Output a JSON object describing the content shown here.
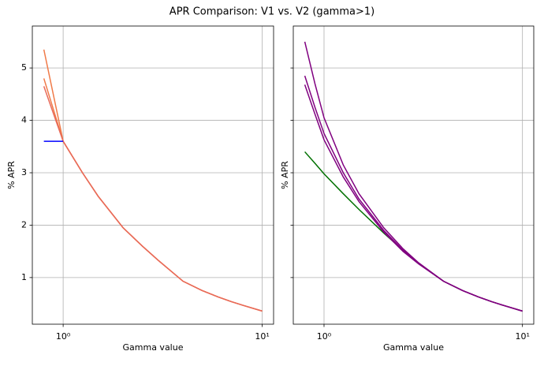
{
  "title": "APR Comparison: V1 vs. V2 (gamma>1)",
  "chart_data": [
    {
      "type": "line",
      "xlabel": "Gamma value",
      "ylabel": "% APR",
      "log_x": true,
      "grid": true,
      "xlim": [
        0.7,
        11.4
      ],
      "ylim": [
        0.11,
        5.8
      ],
      "xticks": [
        {
          "value": 1,
          "label": "10⁰"
        },
        {
          "value": 10,
          "label": "10¹"
        }
      ],
      "yticks": [
        1,
        2,
        3,
        4,
        5
      ],
      "ytick_labels": true,
      "x": [
        0.8,
        1,
        1.25,
        1.5,
        2,
        2.5,
        3,
        4,
        5,
        6,
        7,
        8,
        10
      ],
      "series": [
        {
          "color": "#f07a48",
          "values": [
            5.35,
            3.6,
            3.0,
            2.55,
            1.95,
            1.6,
            1.33,
            0.93,
            0.75,
            0.63,
            0.54,
            0.47,
            0.36
          ]
        },
        {
          "color": "#f07a48",
          "values": [
            4.8,
            3.6,
            3.0,
            2.55,
            1.95,
            1.6,
            1.33,
            0.93,
            0.75,
            0.63,
            0.54,
            0.47,
            0.36
          ]
        },
        {
          "color": "#e86a5a",
          "values": [
            4.65,
            3.6,
            3.0,
            2.55,
            1.95,
            1.6,
            1.33,
            0.93,
            0.75,
            0.63,
            0.54,
            0.47,
            0.36
          ]
        },
        {
          "color": "#0000ff",
          "values": [
            3.6,
            3.6,
            null,
            null,
            null,
            null,
            null,
            null,
            null,
            null,
            null,
            null,
            null
          ]
        }
      ]
    },
    {
      "type": "line",
      "xlabel": "Gamma value",
      "ylabel": "% APR",
      "log_x": true,
      "grid": true,
      "xlim": [
        0.7,
        11.4
      ],
      "ylim": [
        0.11,
        5.8
      ],
      "xticks": [
        {
          "value": 1,
          "label": "10⁰"
        },
        {
          "value": 10,
          "label": "10¹"
        }
      ],
      "yticks": [
        1,
        2,
        3,
        4,
        5
      ],
      "ytick_labels": false,
      "x": [
        0.8,
        0.9,
        1,
        1.25,
        1.5,
        2,
        2.5,
        3,
        4,
        5,
        6,
        7,
        8,
        10
      ],
      "series": [
        {
          "color": "#007000",
          "values": [
            3.4,
            3.18,
            2.98,
            2.6,
            2.3,
            1.85,
            1.52,
            1.27,
            0.93,
            0.75,
            0.63,
            0.54,
            0.47,
            0.36
          ]
        },
        {
          "color": "#800080",
          "values": [
            5.5,
            4.7,
            4.05,
            3.15,
            2.6,
            1.95,
            1.55,
            1.28,
            0.93,
            0.75,
            0.63,
            0.54,
            0.47,
            0.36
          ]
        },
        {
          "color": "#800080",
          "values": [
            4.85,
            4.25,
            3.75,
            3.0,
            2.5,
            1.9,
            1.52,
            1.27,
            0.93,
            0.75,
            0.63,
            0.54,
            0.47,
            0.36
          ]
        },
        {
          "color": "#800080",
          "values": [
            4.68,
            4.12,
            3.63,
            2.92,
            2.45,
            1.87,
            1.5,
            1.26,
            0.93,
            0.75,
            0.63,
            0.54,
            0.47,
            0.36
          ]
        }
      ]
    }
  ]
}
